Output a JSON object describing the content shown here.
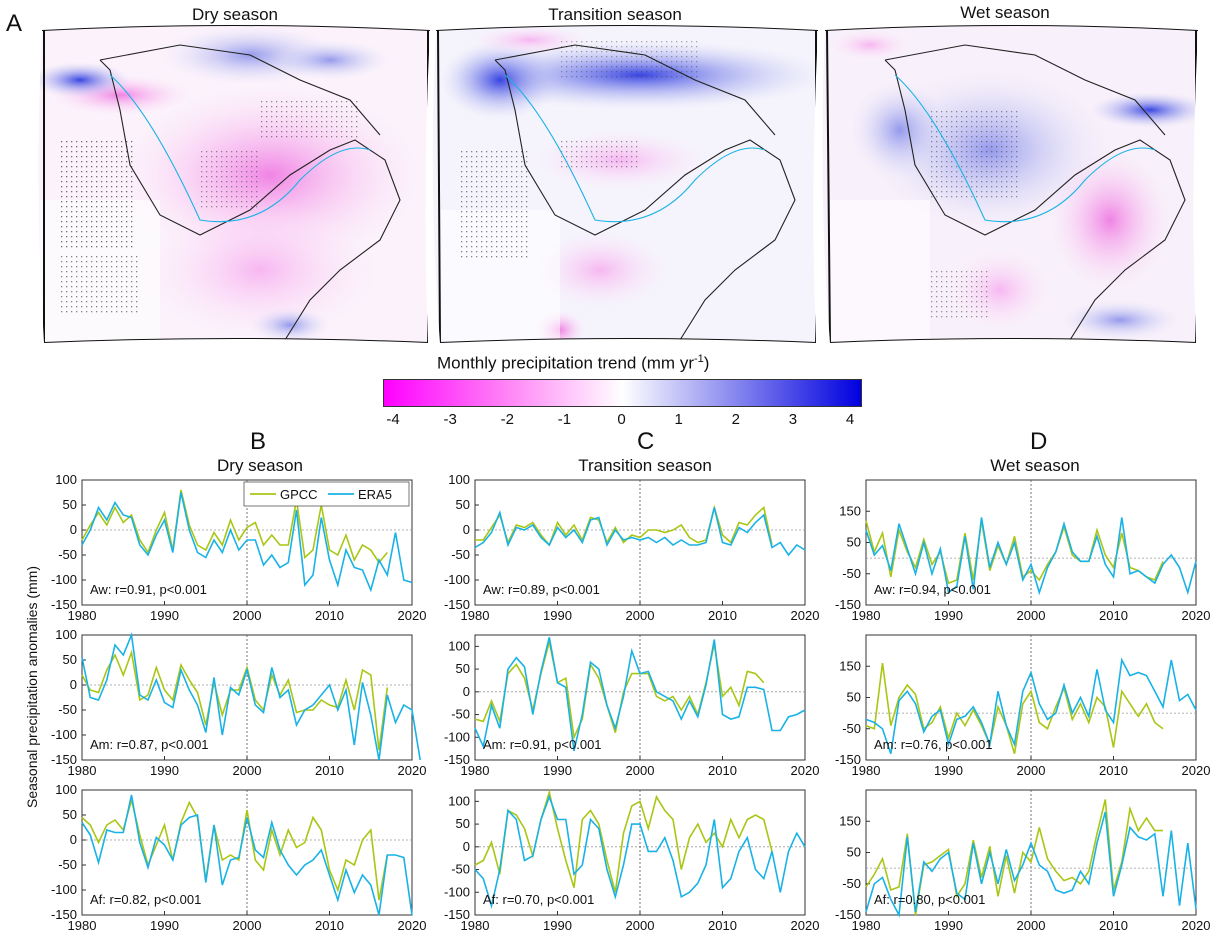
{
  "figure": {
    "panel_a_letter": "A",
    "map_titles": [
      "Dry season",
      "Transition season",
      "Wet season"
    ],
    "colorbar": {
      "title": "Monthly precipitation trend (mm yr",
      "title_sup": "-1",
      "title_tail": ")",
      "ticks": [
        "-4",
        "-3",
        "-2",
        "-1",
        "0",
        "1",
        "2",
        "3",
        "4"
      ],
      "colors": {
        "low": "#ff00ff",
        "mid": "#ffffff",
        "high": "#0000e0"
      }
    },
    "column_letters": [
      "B",
      "C",
      "D"
    ],
    "column_titles": [
      "Dry season",
      "Transition season",
      "Wet season"
    ],
    "shared_ylabel": "Seasonal precipitation anomalies (mm)",
    "colors": {
      "GPCC": "#a9c614",
      "ERA5": "#19b2e6"
    }
  },
  "chart_data": [
    {
      "type": "line",
      "panel": "B-Aw",
      "annotation": "Aw: r=0.91, p<0.001",
      "legend": [
        "GPCC",
        "ERA5"
      ],
      "ylim": [
        -150,
        100
      ],
      "yticks": [
        100,
        50,
        0,
        -50,
        -100,
        -150
      ],
      "xlim": [
        1980,
        2020
      ],
      "xticks": [
        1980,
        1990,
        2000,
        2010,
        2020
      ],
      "series": [
        {
          "name": "GPCC",
          "x0": 1980,
          "values": [
            -20,
            10,
            35,
            10,
            45,
            15,
            30,
            -20,
            -45,
            0,
            35,
            -40,
            80,
            10,
            -30,
            -40,
            -5,
            -30,
            20,
            -20,
            5,
            15,
            -30,
            -10,
            -30,
            -30,
            60,
            -55,
            -40,
            50,
            -40,
            -50,
            -10,
            -60,
            -30,
            -40,
            -65,
            -45
          ]
        },
        {
          "name": "ERA5",
          "x0": 1980,
          "values": [
            -30,
            0,
            45,
            20,
            55,
            30,
            25,
            -30,
            -50,
            -10,
            20,
            -45,
            75,
            0,
            -45,
            -55,
            -20,
            -45,
            0,
            -40,
            -20,
            -20,
            -70,
            -50,
            -75,
            -65,
            40,
            -110,
            -90,
            25,
            -60,
            -110,
            -40,
            -75,
            -80,
            -120,
            -60,
            -90,
            -5,
            -100,
            -105
          ]
        }
      ]
    },
    {
      "type": "line",
      "panel": "C-Aw",
      "annotation": "Aw: r=0.89, p<0.001",
      "ylim": [
        -150,
        100
      ],
      "yticks": [
        100,
        50,
        0,
        -50,
        -100,
        -150
      ],
      "xlim": [
        1980,
        2020
      ],
      "xticks": [
        1980,
        1990,
        2000,
        2010,
        2020
      ],
      "series": [
        {
          "name": "GPCC",
          "x0": 1980,
          "values": [
            -20,
            -20,
            5,
            30,
            -25,
            10,
            5,
            15,
            -10,
            -30,
            15,
            -10,
            10,
            -20,
            25,
            20,
            -25,
            5,
            -25,
            -10,
            -15,
            0,
            0,
            -5,
            0,
            10,
            -15,
            -25,
            -20,
            45,
            -10,
            -25,
            15,
            10,
            30,
            45,
            -30
          ]
        },
        {
          "name": "ERA5",
          "x0": 1980,
          "values": [
            -35,
            -25,
            -5,
            35,
            -30,
            5,
            0,
            10,
            -15,
            -30,
            5,
            -15,
            0,
            -25,
            20,
            25,
            -30,
            0,
            -20,
            -15,
            -20,
            -15,
            -25,
            -15,
            -30,
            -20,
            -30,
            -30,
            -25,
            45,
            -25,
            -30,
            5,
            -5,
            15,
            30,
            -35,
            -25,
            -50,
            -30,
            -40
          ]
        }
      ]
    },
    {
      "type": "line",
      "panel": "D-Aw",
      "annotation": "Aw: r=0.94, p<0.001",
      "ylim": [
        -150,
        250
      ],
      "yticks": [
        150,
        50,
        -50,
        -150
      ],
      "xlim": [
        1980,
        2020
      ],
      "xticks": [
        1980,
        1990,
        2000,
        2010,
        2020
      ],
      "series": [
        {
          "name": "GPCC",
          "x0": 1980,
          "values": [
            120,
            20,
            80,
            -60,
            90,
            20,
            -30,
            60,
            -20,
            20,
            -80,
            -70,
            80,
            -70,
            120,
            -40,
            40,
            -20,
            70,
            -60,
            -40,
            -70,
            -20,
            20,
            100,
            10,
            -10,
            -10,
            90,
            10,
            -30,
            80,
            -30,
            -40,
            -60,
            -70,
            -10
          ]
        },
        {
          "name": "ERA5",
          "x0": 1980,
          "values": [
            90,
            10,
            40,
            -40,
            110,
            30,
            -50,
            50,
            -50,
            30,
            -110,
            -90,
            70,
            -100,
            130,
            -30,
            50,
            -20,
            50,
            -70,
            -20,
            -110,
            -30,
            20,
            110,
            20,
            -10,
            -10,
            70,
            -20,
            -60,
            130,
            -50,
            -40,
            -60,
            -80,
            -20,
            10,
            -30,
            -110,
            -10
          ]
        }
      ]
    },
    {
      "type": "line",
      "panel": "B-Am",
      "annotation": "Am: r=0.87, p<0.001",
      "ylim": [
        -150,
        100
      ],
      "yticks": [
        100,
        50,
        0,
        -50,
        -100,
        -150
      ],
      "xlim": [
        1980,
        2020
      ],
      "xticks": [
        1980,
        1990,
        2000,
        2010,
        2020
      ],
      "series": [
        {
          "name": "GPCC",
          "x0": 1980,
          "values": [
            20,
            -10,
            -15,
            30,
            60,
            20,
            65,
            -30,
            -20,
            35,
            -10,
            -30,
            40,
            10,
            -15,
            -80,
            5,
            -60,
            -10,
            -10,
            35,
            -30,
            -50,
            20,
            -20,
            10,
            -55,
            -50,
            -50,
            -30,
            -40,
            -45,
            10,
            -50,
            30,
            20,
            -130,
            -5
          ]
        },
        {
          "name": "ERA5",
          "x0": 1980,
          "values": [
            55,
            -25,
            -30,
            10,
            80,
            60,
            100,
            -20,
            -30,
            10,
            -35,
            -45,
            30,
            -10,
            -40,
            -95,
            15,
            -100,
            -5,
            -20,
            30,
            -40,
            -55,
            35,
            -25,
            -10,
            -80,
            -50,
            -40,
            -20,
            0,
            -50,
            -10,
            -120,
            5,
            -60,
            -150,
            -20,
            -75,
            -40,
            -50,
            -150
          ]
        }
      ]
    },
    {
      "type": "line",
      "panel": "C-Am",
      "annotation": "Am: r=0.91, p<0.001",
      "ylim": [
        -150,
        125
      ],
      "yticks": [
        100,
        50,
        0,
        -50,
        -100,
        -150
      ],
      "xlim": [
        1980,
        2020
      ],
      "xticks": [
        1980,
        1990,
        2000,
        2010,
        2020
      ],
      "series": [
        {
          "name": "GPCC",
          "x0": 1980,
          "values": [
            -60,
            -65,
            -20,
            -65,
            40,
            60,
            30,
            -40,
            40,
            110,
            20,
            30,
            -100,
            -60,
            60,
            30,
            -30,
            -90,
            0,
            40,
            40,
            40,
            -10,
            -20,
            -10,
            -40,
            -10,
            -50,
            20,
            105,
            -10,
            10,
            -30,
            45,
            40,
            20
          ]
        },
        {
          "name": "ERA5",
          "x0": 1980,
          "values": [
            -80,
            -120,
            -30,
            -80,
            50,
            75,
            55,
            -50,
            45,
            120,
            20,
            10,
            -130,
            -50,
            65,
            50,
            -30,
            -80,
            -10,
            90,
            40,
            45,
            0,
            -10,
            -20,
            -60,
            -20,
            -55,
            15,
            115,
            -50,
            -60,
            -55,
            10,
            10,
            5,
            -85,
            -85,
            -55,
            -50,
            -40
          ]
        }
      ]
    },
    {
      "type": "line",
      "panel": "D-Am",
      "annotation": "Am: r=0.76, p<0.001",
      "ylim": [
        -150,
        250
      ],
      "yticks": [
        150,
        50,
        -50,
        -150
      ],
      "xlim": [
        1980,
        2020
      ],
      "xticks": [
        1980,
        1990,
        2000,
        2010,
        2020
      ],
      "series": [
        {
          "name": "GPCC",
          "x0": 1980,
          "values": [
            -40,
            -50,
            160,
            -40,
            50,
            90,
            60,
            -50,
            -30,
            20,
            -80,
            0,
            -40,
            10,
            -40,
            -100,
            20,
            -40,
            -130,
            30,
            70,
            -30,
            -50,
            20,
            80,
            -20,
            30,
            -30,
            50,
            20,
            -110,
            70,
            30,
            -10,
            30,
            -30,
            -50
          ]
        },
        {
          "name": "ERA5",
          "x0": 1980,
          "values": [
            -20,
            -30,
            -50,
            -130,
            40,
            70,
            30,
            -60,
            -10,
            10,
            -100,
            -20,
            -10,
            20,
            -30,
            -100,
            70,
            -40,
            -100,
            70,
            130,
            30,
            -20,
            0,
            90,
            0,
            50,
            -10,
            140,
            10,
            -30,
            170,
            120,
            130,
            120,
            70,
            20,
            170,
            40,
            60,
            10
          ]
        }
      ]
    },
    {
      "type": "line",
      "panel": "B-Af",
      "annotation": "Af: r=0.82, p<0.001",
      "ylim": [
        -150,
        100
      ],
      "yticks": [
        100,
        50,
        0,
        -50,
        -100,
        -150
      ],
      "xlim": [
        1980,
        2020
      ],
      "xticks": [
        1980,
        1990,
        2000,
        2010,
        2020
      ],
      "series": [
        {
          "name": "GPCC",
          "x0": 1980,
          "values": [
            45,
            30,
            -5,
            30,
            40,
            20,
            80,
            10,
            -50,
            -10,
            30,
            -40,
            35,
            75,
            45,
            -80,
            30,
            -40,
            -30,
            -40,
            60,
            -40,
            -60,
            20,
            -30,
            20,
            -15,
            -5,
            45,
            20,
            -60,
            -100,
            -40,
            -50,
            0,
            20,
            -120,
            -30
          ]
        },
        {
          "name": "ERA5",
          "x0": 1980,
          "values": [
            35,
            10,
            -45,
            20,
            15,
            15,
            90,
            -5,
            -55,
            5,
            -10,
            -40,
            30,
            45,
            50,
            -85,
            30,
            -90,
            -40,
            -35,
            45,
            -20,
            -35,
            35,
            -20,
            -50,
            -70,
            -50,
            -40,
            -20,
            -70,
            -120,
            -60,
            -105,
            -70,
            -90,
            -150,
            -30,
            -30,
            -35,
            -150
          ]
        }
      ]
    },
    {
      "type": "line",
      "panel": "C-Af",
      "annotation": "Af: r=0.70, p<0.001",
      "ylim": [
        -150,
        125
      ],
      "yticks": [
        100,
        50,
        0,
        -50,
        -100,
        -150
      ],
      "xlim": [
        1980,
        2020
      ],
      "xticks": [
        1980,
        1990,
        2000,
        2010,
        2020
      ],
      "series": [
        {
          "name": "GPCC",
          "x0": 1980,
          "values": [
            -40,
            -30,
            10,
            -60,
            80,
            70,
            40,
            -20,
            60,
            120,
            40,
            -30,
            -90,
            60,
            80,
            50,
            -30,
            -100,
            30,
            90,
            100,
            40,
            110,
            80,
            60,
            -50,
            20,
            50,
            10,
            30,
            0,
            60,
            20,
            60,
            70,
            60,
            -10
          ]
        },
        {
          "name": "ERA5",
          "x0": 1980,
          "values": [
            -50,
            -70,
            -130,
            -50,
            80,
            60,
            -30,
            -20,
            60,
            110,
            60,
            60,
            -60,
            -40,
            60,
            40,
            -50,
            -110,
            -40,
            50,
            50,
            -10,
            -10,
            20,
            -30,
            -110,
            -100,
            -80,
            -40,
            60,
            -90,
            -70,
            -10,
            20,
            -50,
            -70,
            -10,
            -100,
            -10,
            30,
            0
          ]
        }
      ]
    },
    {
      "type": "line",
      "panel": "D-Af",
      "annotation": "Af: r=0.80, p<0.001",
      "ylim": [
        -150,
        250
      ],
      "yticks": [
        150,
        50,
        -50,
        -150
      ],
      "xlim": [
        1980,
        2020
      ],
      "xticks": [
        1980,
        1990,
        2000,
        2010,
        2020
      ],
      "series": [
        {
          "name": "GPCC",
          "x0": 1980,
          "values": [
            -60,
            -20,
            30,
            -70,
            -60,
            110,
            -150,
            10,
            20,
            40,
            60,
            -90,
            -50,
            90,
            -30,
            70,
            -90,
            40,
            -80,
            50,
            20,
            130,
            30,
            -10,
            -40,
            -30,
            -50,
            -10,
            110,
            220,
            -70,
            20,
            190,
            120,
            160,
            120,
            120
          ]
        },
        {
          "name": "ERA5",
          "x0": 1980,
          "values": [
            -140,
            -50,
            -30,
            -100,
            -150,
            100,
            -140,
            20,
            -10,
            30,
            50,
            -80,
            -100,
            80,
            -50,
            50,
            -50,
            60,
            -40,
            10,
            80,
            10,
            -10,
            -70,
            -80,
            -70,
            -10,
            -50,
            80,
            180,
            -90,
            10,
            130,
            100,
            90,
            110,
            -90,
            120,
            -120,
            80,
            -130
          ]
        }
      ]
    }
  ]
}
